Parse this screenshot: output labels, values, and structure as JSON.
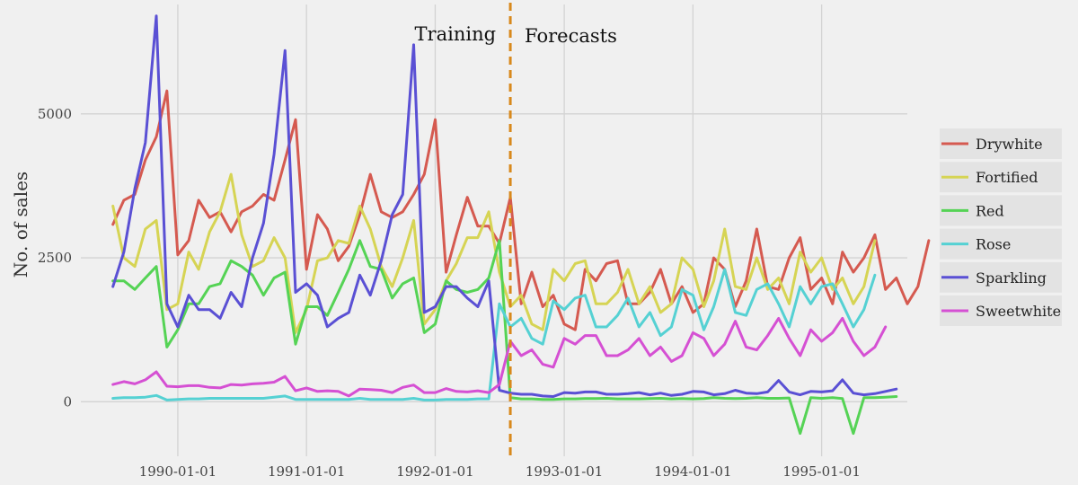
{
  "chart_data": {
    "type": "line",
    "title": "",
    "xlabel": "",
    "ylabel": "No. of sales",
    "x_start": "1989-07-01",
    "x_end": "1995-06-01",
    "xlim": [
      "1989-04-01",
      "1995-09-01"
    ],
    "ylim": [
      -900,
      6900
    ],
    "x_ticks": [
      {
        "date": "1990-01-01",
        "label": "1990-01-01"
      },
      {
        "date": "1991-01-01",
        "label": "1991-01-01"
      },
      {
        "date": "1992-01-01",
        "label": "1992-01-01"
      },
      {
        "date": "1993-01-01",
        "label": "1993-01-01"
      },
      {
        "date": "1994-01-01",
        "label": "1994-01-01"
      },
      {
        "date": "1995-01-01",
        "label": "1995-01-01"
      }
    ],
    "y_ticks": [
      {
        "value": 0,
        "label": "0"
      },
      {
        "value": 2500,
        "label": "2500"
      },
      {
        "value": 5000,
        "label": "5000"
      }
    ],
    "grid": true,
    "legend_position": "right",
    "split": {
      "date": "1992-08-01",
      "color": "#d8891c",
      "left_label": "Training",
      "right_label": "Forecasts"
    },
    "series": [
      {
        "name": "Drywhite",
        "color": "#d55a50",
        "values": [
          3080,
          3500,
          3600,
          4200,
          4600,
          5400,
          2550,
          2800,
          3500,
          3200,
          3300,
          2950,
          3300,
          3400,
          3600,
          3500,
          4200,
          4900,
          2300,
          3250,
          3000,
          2450,
          2700,
          3250,
          3950,
          3300,
          3200,
          3300,
          3600,
          3950,
          4900,
          2250,
          2900,
          3550,
          3050,
          3050,
          2750,
          3550,
          1700,
          2250,
          1650,
          1850,
          1350,
          1250,
          2300,
          2100,
          2400,
          2450,
          1700,
          1700,
          1900,
          2300,
          1700,
          2000,
          1550,
          1700,
          2500,
          2300,
          1650,
          2100,
          3000,
          2000,
          1950,
          2500,
          2850,
          1950,
          2150,
          1700,
          2600,
          2250,
          2500,
          2900,
          1950,
          2150,
          1700,
          2000,
          2800
        ]
      },
      {
        "name": "Fortified",
        "color": "#d6d454",
        "values": [
          3400,
          2500,
          2350,
          3000,
          3150,
          1600,
          1700,
          2600,
          2300,
          2950,
          3300,
          3950,
          2900,
          2350,
          2450,
          2850,
          2500,
          1200,
          1600,
          2450,
          2500,
          2800,
          2750,
          3400,
          3000,
          2350,
          2000,
          2500,
          3150,
          1350,
          1600,
          2100,
          2400,
          2850,
          2850,
          3300,
          2250,
          1650,
          1850,
          1350,
          1250,
          2300,
          2100,
          2400,
          2450,
          1700,
          1700,
          1900,
          2300,
          1700,
          2000,
          1550,
          1700,
          2500,
          2300,
          1650,
          2100,
          3000,
          2000,
          1950,
          2500,
          1950,
          2150,
          1700,
          2600,
          2250,
          2500,
          1950,
          2150,
          1700,
          2000,
          2800
        ]
      },
      {
        "name": "Red",
        "color": "#55d355",
        "values": [
          2100,
          2100,
          1950,
          2150,
          2350,
          950,
          1250,
          1700,
          1700,
          2000,
          2050,
          2450,
          2350,
          2200,
          1850,
          2150,
          2250,
          1000,
          1650,
          1650,
          1500,
          1900,
          2300,
          2800,
          2350,
          2300,
          1800,
          2050,
          2150,
          1200,
          1350,
          2100,
          1950,
          1900,
          1950,
          2150,
          2800,
          70,
          50,
          50,
          40,
          40,
          50,
          50,
          55,
          55,
          60,
          50,
          50,
          50,
          55,
          60,
          50,
          55,
          50,
          55,
          70,
          60,
          55,
          60,
          70,
          60,
          60,
          65,
          -550,
          70,
          60,
          70,
          55,
          -550,
          70,
          70,
          80,
          90
        ]
      },
      {
        "name": "Rose",
        "color": "#55d1d3",
        "values": [
          60,
          70,
          70,
          80,
          110,
          30,
          40,
          50,
          50,
          60,
          60,
          60,
          60,
          60,
          60,
          80,
          100,
          40,
          40,
          40,
          40,
          40,
          40,
          60,
          40,
          40,
          40,
          40,
          60,
          30,
          30,
          40,
          40,
          40,
          50,
          50,
          1700,
          1300,
          1450,
          1100,
          1000,
          1750,
          1600,
          1800,
          1850,
          1300,
          1300,
          1500,
          1800,
          1300,
          1550,
          1150,
          1300,
          1950,
          1850,
          1250,
          1650,
          2300,
          1550,
          1500,
          1950,
          2050,
          1700,
          1300,
          2000,
          1700,
          2000,
          2050,
          1700,
          1300,
          1600,
          2200
        ]
      },
      {
        "name": "Sparkling",
        "color": "#5a50d4",
        "values": [
          2000,
          2600,
          3700,
          4500,
          6700,
          1700,
          1300,
          1850,
          1600,
          1600,
          1450,
          1900,
          1650,
          2500,
          3100,
          4300,
          6100,
          1900,
          2050,
          1850,
          1300,
          1450,
          1550,
          2200,
          1850,
          2450,
          3250,
          3600,
          6200,
          1550,
          1650,
          2000,
          2000,
          1800,
          1650,
          2100,
          200,
          150,
          130,
          130,
          100,
          90,
          160,
          150,
          170,
          170,
          130,
          130,
          140,
          160,
          120,
          150,
          110,
          130,
          180,
          170,
          120,
          140,
          200,
          150,
          140,
          170,
          370,
          170,
          120,
          180,
          170,
          190,
          380,
          150,
          120,
          140,
          180,
          220
        ]
      },
      {
        "name": "Sweetwhite",
        "color": "#d550d3",
        "values": [
          300,
          350,
          310,
          380,
          520,
          270,
          260,
          280,
          280,
          250,
          240,
          300,
          290,
          310,
          320,
          340,
          440,
          190,
          240,
          180,
          190,
          180,
          100,
          220,
          210,
          200,
          160,
          250,
          290,
          160,
          160,
          230,
          180,
          170,
          190,
          160,
          300,
          1050,
          800,
          900,
          650,
          600,
          1100,
          1000,
          1150,
          1150,
          800,
          800,
          900,
          1100,
          800,
          950,
          700,
          800,
          1200,
          1100,
          800,
          1000,
          1400,
          950,
          900,
          1150,
          1450,
          1100,
          800,
          1250,
          1050,
          1200,
          1450,
          1050,
          800,
          950,
          1300
        ]
      }
    ]
  }
}
